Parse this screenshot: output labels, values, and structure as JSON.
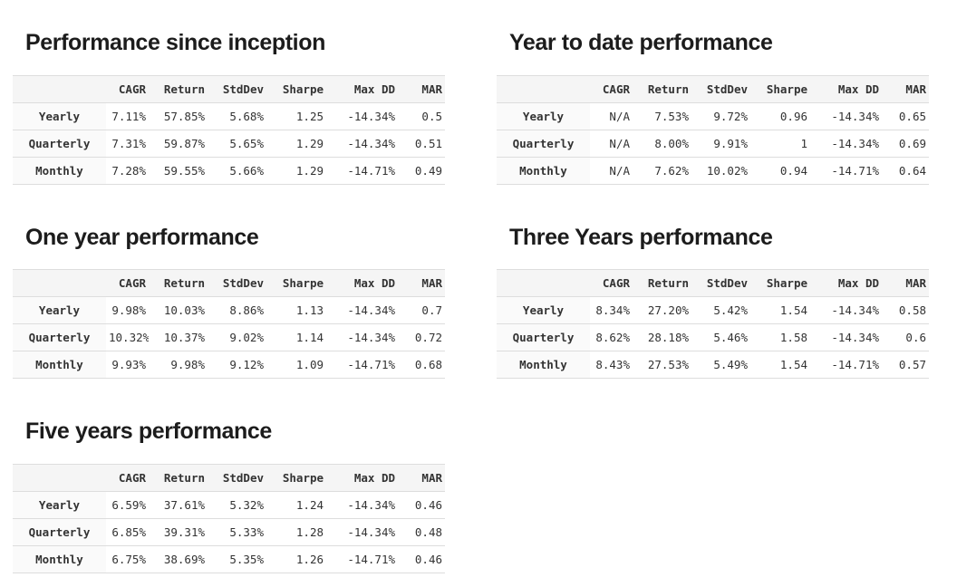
{
  "colors": {
    "page_background": "#ffffff",
    "title_text": "#1c1c1c",
    "table_text": "#333333",
    "header_row_background": "#f5f5f5",
    "row_label_background": "#fafafa",
    "table_border": "#dddddd"
  },
  "chart_data": [
    {
      "type": "table",
      "title": "Performance since inception",
      "columns": [
        "CAGR",
        "Return",
        "StdDev",
        "Sharpe",
        "Max DD",
        "MAR"
      ],
      "rows": [
        {
          "label": "Yearly",
          "values": [
            "7.11%",
            "57.85%",
            "5.68%",
            "1.25",
            "-14.34%",
            "0.5"
          ]
        },
        {
          "label": "Quarterly",
          "values": [
            "7.31%",
            "59.87%",
            "5.65%",
            "1.29",
            "-14.34%",
            "0.51"
          ]
        },
        {
          "label": "Monthly",
          "values": [
            "7.28%",
            "59.55%",
            "5.66%",
            "1.29",
            "-14.71%",
            "0.49"
          ]
        }
      ]
    },
    {
      "type": "table",
      "title": "Year to date performance",
      "columns": [
        "CAGR",
        "Return",
        "StdDev",
        "Sharpe",
        "Max DD",
        "MAR"
      ],
      "rows": [
        {
          "label": "Yearly",
          "values": [
            "N/A",
            "7.53%",
            "9.72%",
            "0.96",
            "-14.34%",
            "0.65"
          ]
        },
        {
          "label": "Quarterly",
          "values": [
            "N/A",
            "8.00%",
            "9.91%",
            "1",
            "-14.34%",
            "0.69"
          ]
        },
        {
          "label": "Monthly",
          "values": [
            "N/A",
            "7.62%",
            "10.02%",
            "0.94",
            "-14.71%",
            "0.64"
          ]
        }
      ]
    },
    {
      "type": "table",
      "title": "One year performance",
      "columns": [
        "CAGR",
        "Return",
        "StdDev",
        "Sharpe",
        "Max DD",
        "MAR"
      ],
      "rows": [
        {
          "label": "Yearly",
          "values": [
            "9.98%",
            "10.03%",
            "8.86%",
            "1.13",
            "-14.34%",
            "0.7"
          ]
        },
        {
          "label": "Quarterly",
          "values": [
            "10.32%",
            "10.37%",
            "9.02%",
            "1.14",
            "-14.34%",
            "0.72"
          ]
        },
        {
          "label": "Monthly",
          "values": [
            "9.93%",
            "9.98%",
            "9.12%",
            "1.09",
            "-14.71%",
            "0.68"
          ]
        }
      ]
    },
    {
      "type": "table",
      "title": "Three Years performance",
      "columns": [
        "CAGR",
        "Return",
        "StdDev",
        "Sharpe",
        "Max DD",
        "MAR"
      ],
      "rows": [
        {
          "label": "Yearly",
          "values": [
            "8.34%",
            "27.20%",
            "5.42%",
            "1.54",
            "-14.34%",
            "0.58"
          ]
        },
        {
          "label": "Quarterly",
          "values": [
            "8.62%",
            "28.18%",
            "5.46%",
            "1.58",
            "-14.34%",
            "0.6"
          ]
        },
        {
          "label": "Monthly",
          "values": [
            "8.43%",
            "27.53%",
            "5.49%",
            "1.54",
            "-14.71%",
            "0.57"
          ]
        }
      ]
    },
    {
      "type": "table",
      "title": "Five years performance",
      "columns": [
        "CAGR",
        "Return",
        "StdDev",
        "Sharpe",
        "Max DD",
        "MAR"
      ],
      "rows": [
        {
          "label": "Yearly",
          "values": [
            "6.59%",
            "37.61%",
            "5.32%",
            "1.24",
            "-14.34%",
            "0.46"
          ]
        },
        {
          "label": "Quarterly",
          "values": [
            "6.85%",
            "39.31%",
            "5.33%",
            "1.28",
            "-14.34%",
            "0.48"
          ]
        },
        {
          "label": "Monthly",
          "values": [
            "6.75%",
            "38.69%",
            "5.35%",
            "1.26",
            "-14.71%",
            "0.46"
          ]
        }
      ]
    }
  ]
}
